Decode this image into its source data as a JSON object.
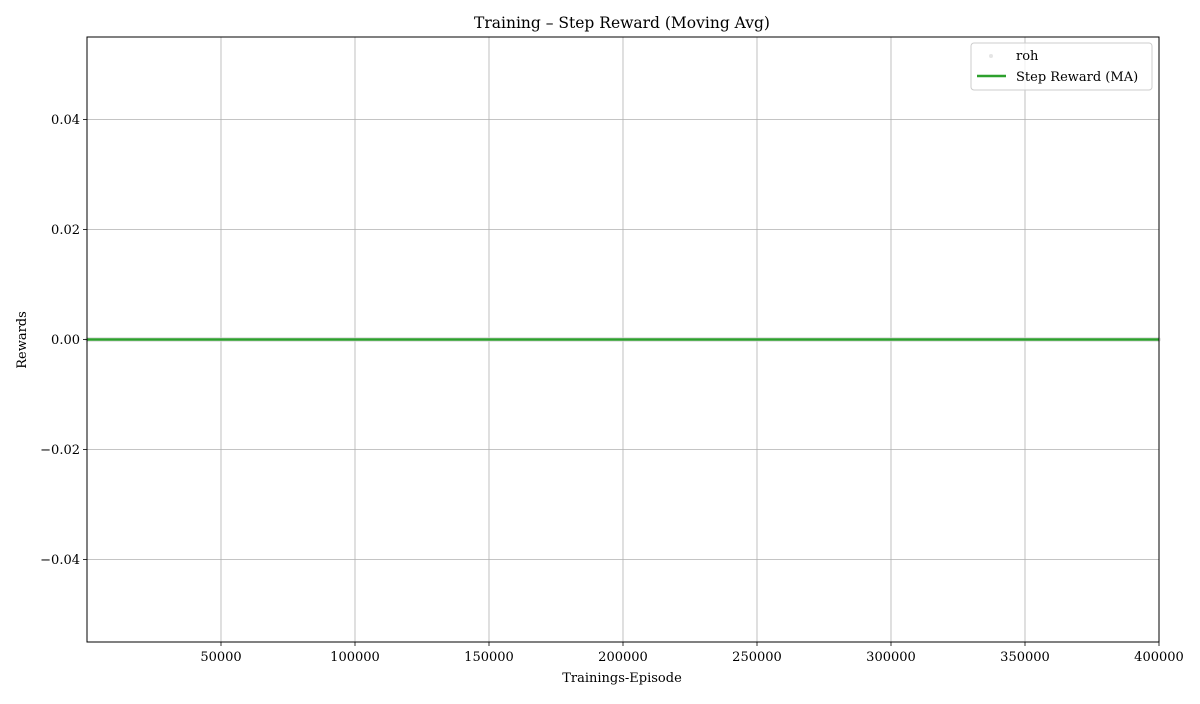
{
  "chart_data": {
    "type": "line",
    "title": "Training – Step Reward (Moving Avg)",
    "xlabel": "Trainings-Episode",
    "ylabel": "Rewards",
    "xlim": [
      0,
      400000
    ],
    "ylim": [
      -0.055,
      0.055
    ],
    "x_ticks": [
      50000,
      100000,
      150000,
      200000,
      250000,
      300000,
      350000,
      400000
    ],
    "x_tick_labels": [
      "50000",
      "100000",
      "150000",
      "200000",
      "250000",
      "300000",
      "350000",
      "400000"
    ],
    "y_ticks": [
      -0.04,
      -0.02,
      0.0,
      0.02,
      0.04
    ],
    "y_tick_labels": [
      "−0.04",
      "−0.02",
      "0.00",
      "0.02",
      "0.04"
    ],
    "grid": true,
    "legend_location": "top-right",
    "series": [
      {
        "name": "roh",
        "kind": "scatter",
        "color": "#d3d3d3",
        "x": [
          0,
          400000
        ],
        "y": [
          0,
          0
        ]
      },
      {
        "name": "Step Reward (MA)",
        "kind": "line",
        "color": "#2ca02c",
        "x": [
          0,
          400000
        ],
        "y": [
          0,
          0
        ]
      }
    ]
  }
}
